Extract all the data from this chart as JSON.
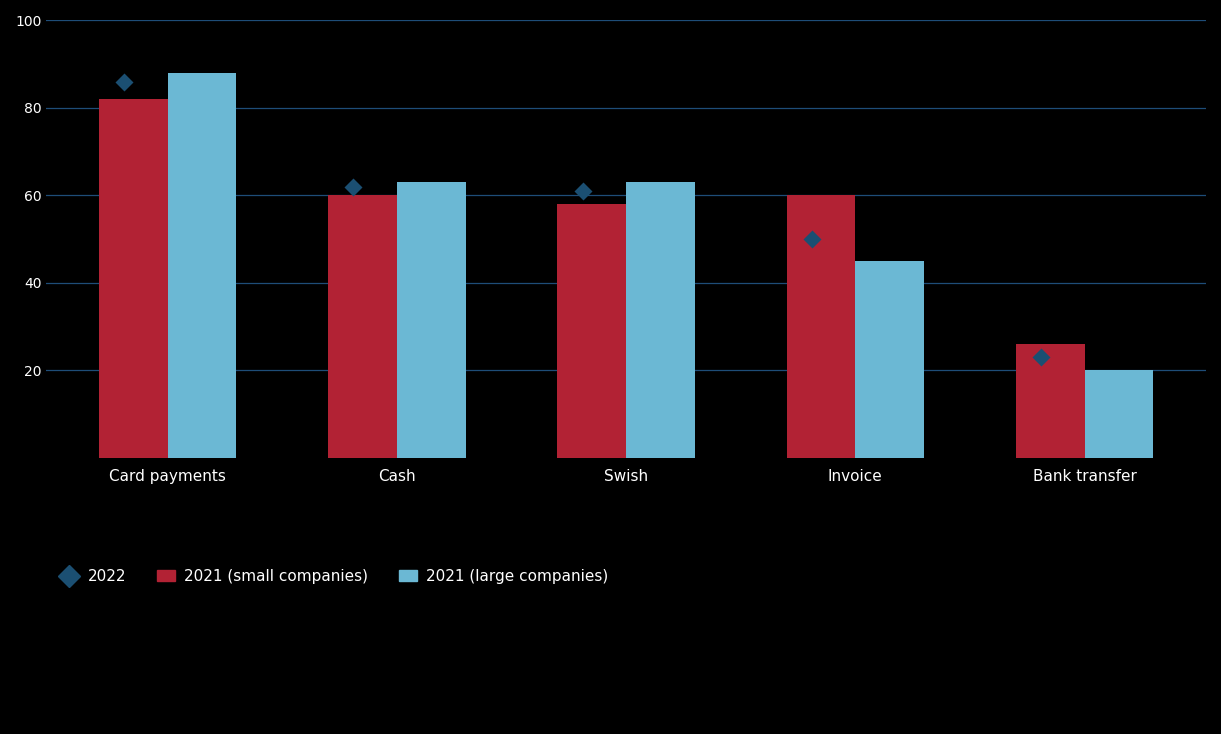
{
  "categories": [
    "Card payments",
    "Cash",
    "Swish",
    "Invoice",
    "Bank transfer"
  ],
  "series1_label": "2022",
  "series2_label": "2021 (small companies)",
  "series3_label": "2021 (large companies)",
  "bar1_color": "#B22234",
  "bar2_color": "#6BB8D4",
  "diamond_color": "#1B4F72",
  "background_color": "#000000",
  "text_color": "#ffffff",
  "grid_color": "#1E4D78",
  "red_values": [
    82,
    60,
    58,
    60,
    26
  ],
  "blue_values": [
    88,
    63,
    63,
    45,
    20
  ],
  "diamond_values": [
    86,
    62,
    61,
    50,
    23
  ],
  "ylim_max": 100,
  "yticks": [
    20,
    40,
    60,
    80,
    100
  ]
}
